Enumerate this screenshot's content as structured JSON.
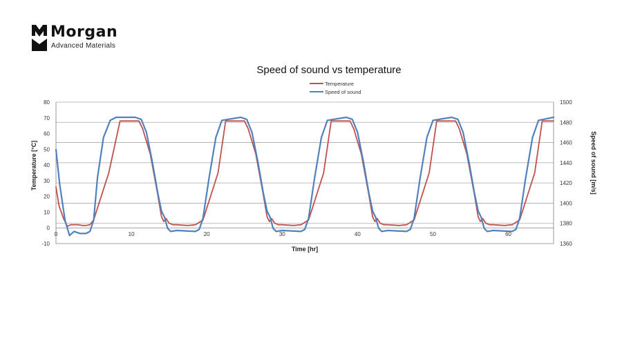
{
  "brand": {
    "name": "Morgan",
    "tagline": "Advanced Materials"
  },
  "colors": {
    "temperature": "#c0504d",
    "speed": "#4f81bd",
    "grid": "#a6a6a6",
    "axis": "#808080"
  },
  "chart_data": {
    "type": "line",
    "title": "Speed of sound vs temperature",
    "xlabel": "Time [hr]",
    "ylabel_left": "Temperature [°C]",
    "ylabel_right": "Speed of sound [m/s]",
    "xlim": [
      0,
      66
    ],
    "ylim_left": [
      -10,
      80
    ],
    "ylim_right": [
      1360,
      1500
    ],
    "xticks": [
      0,
      10,
      20,
      30,
      40,
      50,
      60
    ],
    "yticks_left": [
      -10,
      0,
      10,
      20,
      30,
      40,
      50,
      60,
      70,
      80
    ],
    "yticks_right": [
      1360,
      1380,
      1400,
      1420,
      1440,
      1460,
      1480,
      1500
    ],
    "grid": "horizontal",
    "legend": "top-center",
    "series": [
      {
        "name": "Temperature",
        "axis": "left",
        "color": "#c0504d",
        "x": [
          0,
          0.4,
          1,
          1.5,
          2,
          3,
          3.5,
          4,
          4.5,
          5,
          7,
          8.5,
          11,
          11.5,
          12.5,
          13.5,
          14,
          14.3,
          14.6,
          15,
          15.5,
          16,
          17.5,
          18.5,
          19.5,
          21.5,
          22.5,
          25,
          25.5,
          26.5,
          27.5,
          28,
          28.3,
          28.6,
          29,
          29.5,
          30,
          31.5,
          32.5,
          33.5,
          35.5,
          36.5,
          39,
          39.5,
          40.5,
          41.5,
          42,
          42.3,
          42.6,
          43,
          43.5,
          44,
          45.5,
          46.5,
          47.5,
          49.5,
          50.5,
          53,
          53.5,
          54.5,
          55.5,
          56,
          56.3,
          56.6,
          57,
          57.5,
          58,
          59.5,
          60.5,
          61.5,
          63.5,
          64.5,
          66
        ],
        "y": [
          26,
          14,
          6,
          1,
          2,
          2,
          1.5,
          1.5,
          2,
          5,
          35,
          68,
          68,
          63,
          47,
          21,
          7,
          4,
          6,
          3,
          2,
          2,
          1.5,
          2,
          5,
          35,
          68,
          68,
          63,
          47,
          21,
          7,
          4,
          6,
          3,
          2,
          2,
          1.5,
          2,
          5,
          35,
          68,
          68,
          63,
          47,
          21,
          7,
          4,
          6,
          3,
          2,
          2,
          1.5,
          2,
          5,
          35,
          68,
          68,
          63,
          47,
          21,
          7,
          4,
          6,
          3,
          2,
          2,
          1.5,
          2,
          5,
          35,
          68,
          68
        ]
      },
      {
        "name": "Speed of sound",
        "axis": "right",
        "color": "#4f81bd",
        "x": [
          0,
          0.5,
          1.2,
          1.8,
          2.4,
          3.2,
          4,
          4.5,
          5,
          5.5,
          6.3,
          7.2,
          8,
          10.5,
          11.3,
          12,
          12.8,
          13.5,
          14,
          14.4,
          14.8,
          15.2,
          16,
          18.5,
          19,
          19.5,
          20.3,
          21.2,
          22,
          24.5,
          25.3,
          26,
          26.8,
          27.5,
          28,
          28.4,
          28.8,
          29.2,
          30,
          32.5,
          33,
          33.5,
          34.3,
          35.2,
          36,
          38.5,
          39.3,
          40,
          40.8,
          41.5,
          42,
          42.4,
          42.8,
          43.2,
          44,
          46.5,
          47,
          47.5,
          48.3,
          49.2,
          50,
          52.5,
          53.3,
          54,
          54.8,
          55.5,
          56,
          56.4,
          56.8,
          57.2,
          58,
          60.5,
          61,
          61.5,
          62.3,
          63.2,
          64,
          66
        ],
        "y": [
          1453,
          1418,
          1383,
          1368,
          1372,
          1370,
          1370,
          1372,
          1383,
          1425,
          1465,
          1482,
          1485,
          1485,
          1483,
          1470,
          1440,
          1410,
          1392,
          1386,
          1375,
          1372,
          1373,
          1372,
          1374,
          1385,
          1425,
          1465,
          1482,
          1485,
          1483,
          1470,
          1440,
          1410,
          1392,
          1386,
          1375,
          1372,
          1373,
          1372,
          1374,
          1385,
          1425,
          1465,
          1482,
          1485,
          1483,
          1470,
          1440,
          1410,
          1392,
          1386,
          1375,
          1372,
          1373,
          1372,
          1374,
          1385,
          1425,
          1465,
          1482,
          1485,
          1483,
          1470,
          1440,
          1410,
          1392,
          1386,
          1375,
          1372,
          1373,
          1372,
          1374,
          1385,
          1425,
          1465,
          1482,
          1485
        ]
      }
    ]
  }
}
